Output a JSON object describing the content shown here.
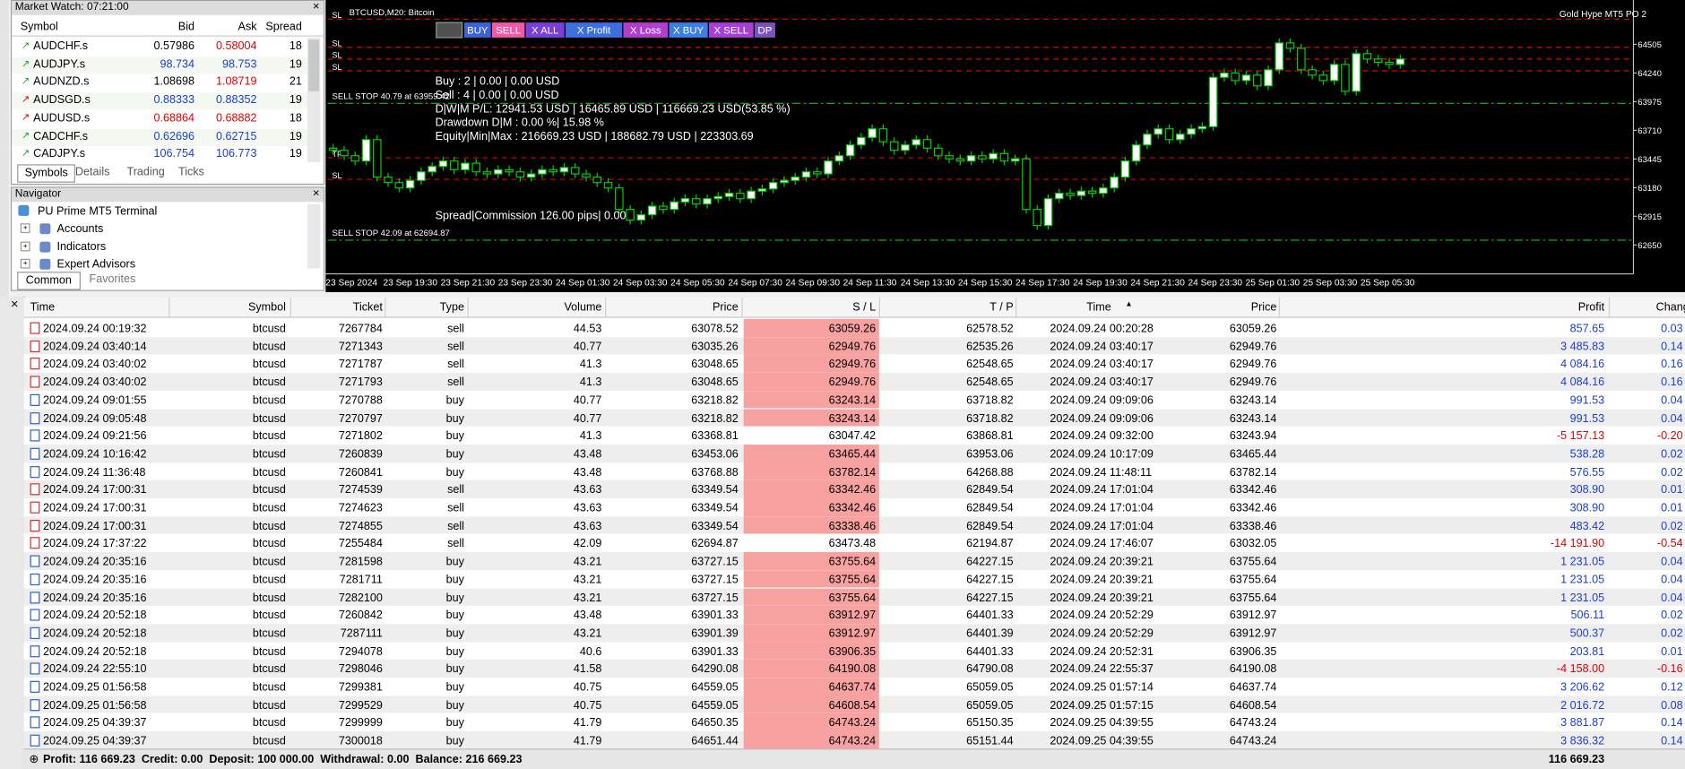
{
  "market_watch": {
    "title": "Market Watch: 07:21:00",
    "columns": [
      "Symbol",
      "Bid",
      "Ask",
      "Spread"
    ],
    "rows": [
      {
        "symbol": "AUDCHF.s",
        "bid": "0.57986",
        "ask": "0.58004",
        "spread": "18",
        "bid_color": "#000000",
        "ask_color": "#e00000",
        "icon_color": "#2a9d3a"
      },
      {
        "symbol": "AUDJPY.s",
        "bid": "98.734",
        "ask": "98.753",
        "spread": "19",
        "bid_color": "#1a3fd0",
        "ask_color": "#1a3fd0",
        "icon_color": "#2a9d3a"
      },
      {
        "symbol": "AUDNZD.s",
        "bid": "1.08698",
        "ask": "1.08719",
        "spread": "21",
        "bid_color": "#000000",
        "ask_color": "#e00000",
        "icon_color": "#2a9d3a"
      },
      {
        "symbol": "AUDSGD.s",
        "bid": "0.88333",
        "ask": "0.88352",
        "spread": "19",
        "bid_color": "#1a3fd0",
        "ask_color": "#1a3fd0",
        "icon_color": "#e00000"
      },
      {
        "symbol": "AUDUSD.s",
        "bid": "0.68864",
        "ask": "0.68882",
        "spread": "18",
        "bid_color": "#e00000",
        "ask_color": "#e00000",
        "icon_color": "#e00000"
      },
      {
        "symbol": "CADCHF.s",
        "bid": "0.62696",
        "ask": "0.62715",
        "spread": "19",
        "bid_color": "#1a3fd0",
        "ask_color": "#1a3fd0",
        "icon_color": "#2a9d3a"
      },
      {
        "symbol": "CADJPY.s",
        "bid": "106.754",
        "ask": "106.773",
        "spread": "19",
        "bid_color": "#1a3fd0",
        "ask_color": "#1a3fd0",
        "icon_color": "#2a9d3a"
      }
    ],
    "tabs": [
      "Symbols",
      "Details",
      "Trading",
      "Ticks"
    ]
  },
  "navigator": {
    "title": "Navigator",
    "root": "PU Prime MT5 Terminal",
    "items": [
      "Accounts",
      "Indicators",
      "Expert Advisors"
    ],
    "tabs": [
      "Common",
      "Favorites"
    ]
  },
  "chart_data": {
    "type": "candlestick",
    "title": "BTCUSD,M20: Bitcoin",
    "corner_label": "Gold Hype MT5 PO 2",
    "buttons": [
      {
        "label": "BUY",
        "color": "#3d63d8"
      },
      {
        "label": "SELL",
        "color": "#f05aa8"
      },
      {
        "label": "X ALL",
        "color": "#7a3fd6"
      },
      {
        "label": "X Profit",
        "color": "#3d6fe0"
      },
      {
        "label": "X Loss",
        "color": "#b03fd0"
      },
      {
        "label": "X BUY",
        "color": "#3d7fe6"
      },
      {
        "label": "X SELL",
        "color": "#a53fd6"
      },
      {
        "label": "DP",
        "color": "#7a52b8"
      }
    ],
    "info_lines": [
      "Buy : 2 | 0.00 | 0.00 USD",
      "Sell : 4 | 0.00 | 0.00 USD",
      "D|W|M P/L: 12941.53 USD | 16465.89 USD | 116669.23 USD(53.85 %)",
      "Drawdown D|M : 0.00 %| 15.98 %",
      "Equity|Min|Max : 216669.23 USD | 188682.79 USD | 223303.69"
    ],
    "spread_line": "Spread|Commission 126.00 pips| 0.00",
    "time_labels": [
      "23 Sep 2024",
      "23 Sep 19:30",
      "23 Sep 21:30",
      "23 Sep 23:30",
      "24 Sep 01:30",
      "24 Sep 03:30",
      "24 Sep 05:30",
      "24 Sep 07:30",
      "24 Sep 09:30",
      "24 Sep 11:30",
      "24 Sep 13:30",
      "24 Sep 15:30",
      "24 Sep 17:30",
      "24 Sep 19:30",
      "24 Sep 21:30",
      "24 Sep 23:30",
      "25 Sep 01:30",
      "25 Sep 03:30",
      "25 Sep 05:30"
    ],
    "open": [
      63545,
      63525,
      63475,
      63426,
      63624,
      63277,
      63227,
      63177,
      63247,
      63326,
      63376,
      63426,
      63346,
      63406,
      63326,
      63307,
      63346,
      63326,
      63277,
      63307,
      63346,
      63326,
      63366,
      63307,
      63277,
      63227,
      63177,
      62979,
      62880,
      62929,
      63009,
      62979,
      63048,
      63078,
      63029,
      63078,
      63098,
      63128,
      63078,
      63148,
      63168,
      63227,
      63247,
      63277,
      63326,
      63307,
      63426,
      63475,
      63575,
      63644,
      63724,
      63604,
      63525,
      63575,
      63624,
      63545,
      63475,
      63446,
      63426,
      63475,
      63446,
      63495,
      63426,
      63446,
      62979,
      62830,
      63078,
      63128,
      63108,
      63148,
      63128,
      63177,
      63277,
      63426,
      63575,
      63674,
      63724,
      63624,
      63674,
      63724,
      63744,
      64200,
      64240,
      64170,
      64220,
      64121,
      64270,
      64518,
      64468,
      64270,
      64220,
      64170,
      64319,
      64071,
      64419,
      64369,
      64339,
      64319
    ],
    "high": [
      63585,
      63565,
      63515,
      63664,
      63664,
      63317,
      63267,
      63287,
      63366,
      63416,
      63466,
      63466,
      63446,
      63446,
      63366,
      63386,
      63386,
      63366,
      63347,
      63386,
      63386,
      63406,
      63406,
      63347,
      63317,
      63267,
      63217,
      63019,
      62969,
      63049,
      63049,
      63088,
      63118,
      63118,
      63118,
      63138,
      63168,
      63168,
      63188,
      63208,
      63267,
      63287,
      63317,
      63366,
      63366,
      63466,
      63515,
      63615,
      63684,
      63764,
      63764,
      63644,
      63615,
      63664,
      63664,
      63585,
      63515,
      63486,
      63515,
      63515,
      63535,
      63535,
      63486,
      63486,
      63019,
      63118,
      63168,
      63168,
      63188,
      63188,
      63217,
      63317,
      63466,
      63615,
      63714,
      63764,
      63764,
      63714,
      63764,
      63784,
      64240,
      64280,
      64280,
      64260,
      64260,
      64310,
      64558,
      64558,
      64508,
      64310,
      64260,
      64359,
      64359,
      64459,
      64459,
      64409,
      64379,
      64409
    ],
    "low": [
      63485,
      63435,
      63386,
      63386,
      63237,
      63187,
      63137,
      63137,
      63207,
      63286,
      63336,
      63306,
      63306,
      63286,
      63267,
      63267,
      63286,
      63237,
      63237,
      63267,
      63286,
      63286,
      63267,
      63237,
      63187,
      63137,
      62939,
      62840,
      62840,
      62889,
      62939,
      62939,
      63008,
      62989,
      62989,
      63038,
      63058,
      63038,
      63038,
      63108,
      63128,
      63187,
      63207,
      63237,
      63267,
      63267,
      63386,
      63435,
      63535,
      63604,
      63564,
      63485,
      63485,
      63535,
      63505,
      63435,
      63406,
      63386,
      63386,
      63406,
      63406,
      63386,
      63386,
      62939,
      62790,
      62790,
      63038,
      63068,
      63068,
      63088,
      63088,
      63137,
      63237,
      63386,
      63535,
      63634,
      63584,
      63584,
      63634,
      63684,
      63704,
      64160,
      64130,
      64130,
      64081,
      64081,
      64230,
      64428,
      64230,
      64180,
      64130,
      64130,
      64031,
      64031,
      64329,
      64299,
      64279,
      64279
    ],
    "close": [
      63525,
      63475,
      63426,
      63624,
      63277,
      63227,
      63177,
      63247,
      63326,
      63376,
      63426,
      63346,
      63406,
      63326,
      63307,
      63346,
      63326,
      63277,
      63307,
      63346,
      63326,
      63366,
      63307,
      63277,
      63227,
      63177,
      62979,
      62880,
      62929,
      63009,
      62979,
      63048,
      63078,
      63029,
      63078,
      63098,
      63128,
      63078,
      63148,
      63168,
      63227,
      63247,
      63277,
      63326,
      63307,
      63426,
      63475,
      63575,
      63644,
      63724,
      63604,
      63525,
      63575,
      63624,
      63545,
      63475,
      63446,
      63426,
      63475,
      63446,
      63495,
      63426,
      63446,
      62979,
      62830,
      63078,
      63128,
      63108,
      63148,
      63128,
      63177,
      63277,
      63426,
      63575,
      63674,
      63724,
      63624,
      63674,
      63724,
      63744,
      64200,
      64240,
      64170,
      64220,
      64121,
      64270,
      64518,
      64468,
      64270,
      64220,
      64170,
      64319,
      64071,
      64419,
      64369,
      64339,
      64319,
      64369
    ],
    "up_color": "#ffffff",
    "down_color": "#000000",
    "outline_color": "#00d000",
    "ylim": [
      62383,
      64885
    ],
    "yticks": [
      64505,
      64240,
      63975,
      63710,
      63445,
      63180,
      62915,
      62650
    ],
    "levels": [
      {
        "price": 64737,
        "color": "#e00000",
        "tag": "SL"
      },
      {
        "price": 64478,
        "color": "#e00000",
        "tag": "SL"
      },
      {
        "price": 64369,
        "color": "#e00000",
        "tag": "SL"
      },
      {
        "price": 64260,
        "color": "#e00000",
        "tag": "SL"
      },
      {
        "price": 63959.42,
        "color": "#00c800",
        "label": "SELL STOP 40.79 at 63959.42"
      },
      {
        "price": 63456,
        "color": "#e00000",
        "tag": "TP"
      },
      {
        "price": 63257,
        "color": "#e00000",
        "tag": "SL"
      },
      {
        "price": 62694.87,
        "color": "#00c800",
        "label": "SELL STOP 42.09 at 62694.87"
      }
    ]
  },
  "history": {
    "columns": [
      "Time",
      "Symbol",
      "Ticket",
      "Type",
      "Volume",
      "Price",
      "S / L",
      "T / P",
      "Time",
      "Price",
      "Profit",
      "Change"
    ],
    "rows": [
      {
        "cells": [
          "2024.09.24 00:19:32",
          "btcusd",
          "7267784",
          "sell",
          "44.53",
          "63078.52",
          "63059.26",
          "62578.52",
          "2024.09.24 00:20:28",
          "63059.26",
          "857.65",
          "0.03"
        ],
        "sl_fill": "#f7a1a1"
      },
      {
        "cells": [
          "2024.09.24 03:40:14",
          "btcusd",
          "7271343",
          "sell",
          "40.77",
          "63035.26",
          "62949.76",
          "62535.26",
          "2024.09.24 03:40:17",
          "62949.76",
          "3 485.83",
          "0.14"
        ],
        "sl_fill": "#f7a1a1"
      },
      {
        "cells": [
          "2024.09.24 03:40:02",
          "btcusd",
          "7271787",
          "sell",
          "41.3",
          "63048.65",
          "62949.76",
          "62548.65",
          "2024.09.24 03:40:17",
          "62949.76",
          "4 084.16",
          "0.16"
        ],
        "sl_fill": "#f7a1a1"
      },
      {
        "cells": [
          "2024.09.24 03:40:02",
          "btcusd",
          "7271793",
          "sell",
          "41.3",
          "63048.65",
          "62949.76",
          "62548.65",
          "2024.09.24 03:40:17",
          "62949.76",
          "4 084.16",
          "0.16"
        ],
        "sl_fill": "#f7a1a1"
      },
      {
        "cells": [
          "2024.09.24 09:01:55",
          "btcusd",
          "7270788",
          "buy",
          "40.77",
          "63218.82",
          "63243.14",
          "63718.82",
          "2024.09.24 09:09:06",
          "63243.14",
          "991.53",
          "0.04"
        ],
        "sl_fill": "#f7a1a1"
      },
      {
        "cells": [
          "2024.09.24 09:05:48",
          "btcusd",
          "7270797",
          "buy",
          "40.77",
          "63218.82",
          "63243.14",
          "63718.82",
          "2024.09.24 09:09:06",
          "63243.14",
          "991.53",
          "0.04"
        ],
        "sl_fill": "#f7a1a1"
      },
      {
        "cells": [
          "2024.09.24 09:21:56",
          "btcusd",
          "7271802",
          "buy",
          "41.3",
          "63368.81",
          "63047.42",
          "63868.81",
          "2024.09.24 09:32:00",
          "63243.94",
          "-5 157.13",
          "-0.20"
        ],
        "sl_fill": "#ffffff"
      },
      {
        "cells": [
          "2024.09.24 10:16:42",
          "btcusd",
          "7260839",
          "buy",
          "43.48",
          "63453.06",
          "63465.44",
          "63953.06",
          "2024.09.24 10:17:09",
          "63465.44",
          "538.28",
          "0.02"
        ],
        "sl_fill": "#f7a1a1"
      },
      {
        "cells": [
          "2024.09.24 11:36:48",
          "btcusd",
          "7260841",
          "buy",
          "43.48",
          "63768.88",
          "63782.14",
          "64268.88",
          "2024.09.24 11:48:11",
          "63782.14",
          "576.55",
          "0.02"
        ],
        "sl_fill": "#f7a1a1"
      },
      {
        "cells": [
          "2024.09.24 17:00:31",
          "btcusd",
          "7274539",
          "sell",
          "43.63",
          "63349.54",
          "63342.46",
          "62849.54",
          "2024.09.24 17:01:04",
          "63342.46",
          "308.90",
          "0.01"
        ],
        "sl_fill": "#f7a1a1"
      },
      {
        "cells": [
          "2024.09.24 17:00:31",
          "btcusd",
          "7274623",
          "sell",
          "43.63",
          "63349.54",
          "63342.46",
          "62849.54",
          "2024.09.24 17:01:04",
          "63342.46",
          "308.90",
          "0.01"
        ],
        "sl_fill": "#f7a1a1"
      },
      {
        "cells": [
          "2024.09.24 17:00:31",
          "btcusd",
          "7274855",
          "sell",
          "43.63",
          "63349.54",
          "63338.46",
          "62849.54",
          "2024.09.24 17:01:04",
          "63338.46",
          "483.42",
          "0.02"
        ],
        "sl_fill": "#f7a1a1"
      },
      {
        "cells": [
          "2024.09.24 17:37:22",
          "btcusd",
          "7255484",
          "sell",
          "42.09",
          "62694.87",
          "63473.48",
          "62194.87",
          "2024.09.24 17:46:07",
          "63032.05",
          "-14 191.90",
          "-0.54"
        ],
        "sl_fill": "#ffffff"
      },
      {
        "cells": [
          "2024.09.24 20:35:16",
          "btcusd",
          "7281598",
          "buy",
          "43.21",
          "63727.15",
          "63755.64",
          "64227.15",
          "2024.09.24 20:39:21",
          "63755.64",
          "1 231.05",
          "0.04"
        ],
        "sl_fill": "#f7a1a1"
      },
      {
        "cells": [
          "2024.09.24 20:35:16",
          "btcusd",
          "7281711",
          "buy",
          "43.21",
          "63727.15",
          "63755.64",
          "64227.15",
          "2024.09.24 20:39:21",
          "63755.64",
          "1 231.05",
          "0.04"
        ],
        "sl_fill": "#f7a1a1"
      },
      {
        "cells": [
          "2024.09.24 20:35:16",
          "btcusd",
          "7282100",
          "buy",
          "43.21",
          "63727.15",
          "63755.64",
          "64227.15",
          "2024.09.24 20:39:21",
          "63755.64",
          "1 231.05",
          "0.04"
        ],
        "sl_fill": "#f7a1a1"
      },
      {
        "cells": [
          "2024.09.24 20:52:18",
          "btcusd",
          "7260842",
          "buy",
          "43.48",
          "63901.33",
          "63912.97",
          "64401.33",
          "2024.09.24 20:52:29",
          "63912.97",
          "506.11",
          "0.02"
        ],
        "sl_fill": "#f7a1a1"
      },
      {
        "cells": [
          "2024.09.24 20:52:18",
          "btcusd",
          "7287111",
          "buy",
          "43.21",
          "63901.39",
          "63912.97",
          "64401.39",
          "2024.09.24 20:52:29",
          "63912.97",
          "500.37",
          "0.02"
        ],
        "sl_fill": "#f7a1a1"
      },
      {
        "cells": [
          "2024.09.24 20:52:18",
          "btcusd",
          "7294078",
          "buy",
          "40.6",
          "63901.33",
          "63906.35",
          "64401.33",
          "2024.09.24 20:52:31",
          "63906.35",
          "203.81",
          "0.01"
        ],
        "sl_fill": "#f7a1a1"
      },
      {
        "cells": [
          "2024.09.24 22:55:10",
          "btcusd",
          "7298046",
          "buy",
          "41.58",
          "64290.08",
          "64190.08",
          "64790.08",
          "2024.09.24 22:55:37",
          "64190.08",
          "-4 158.00",
          "-0.16"
        ],
        "sl_fill": "#f7a1a1"
      },
      {
        "cells": [
          "2024.09.25 01:56:58",
          "btcusd",
          "7299381",
          "buy",
          "40.75",
          "64559.05",
          "64637.74",
          "65059.05",
          "2024.09.25 01:57:14",
          "64637.74",
          "3 206.62",
          "0.12"
        ],
        "sl_fill": "#f7a1a1"
      },
      {
        "cells": [
          "2024.09.25 01:56:58",
          "btcusd",
          "7299529",
          "buy",
          "40.75",
          "64559.05",
          "64608.54",
          "65059.05",
          "2024.09.25 01:57:15",
          "64608.54",
          "2 016.72",
          "0.08"
        ],
        "sl_fill": "#f7a1a1"
      },
      {
        "cells": [
          "2024.09.25 04:39:37",
          "btcusd",
          "7299999",
          "buy",
          "41.79",
          "64650.35",
          "64743.24",
          "65150.35",
          "2024.09.25 04:39:55",
          "64743.24",
          "3 881.87",
          "0.14"
        ],
        "sl_fill": "#f7a1a1"
      },
      {
        "cells": [
          "2024.09.25 04:39:37",
          "btcusd",
          "7300018",
          "buy",
          "41.79",
          "64651.44",
          "64743.24",
          "65151.44",
          "2024.09.25 04:39:55",
          "64743.24",
          "3 836.32",
          "0.14"
        ],
        "sl_fill": "#f7a1a1"
      }
    ],
    "status": {
      "summary": "Profit: 116 669.23  Credit: 0.00  Deposit: 100 000.00  Withdrawal: 0.00  Balance: 216 669.23",
      "total": "116 669.23"
    }
  }
}
